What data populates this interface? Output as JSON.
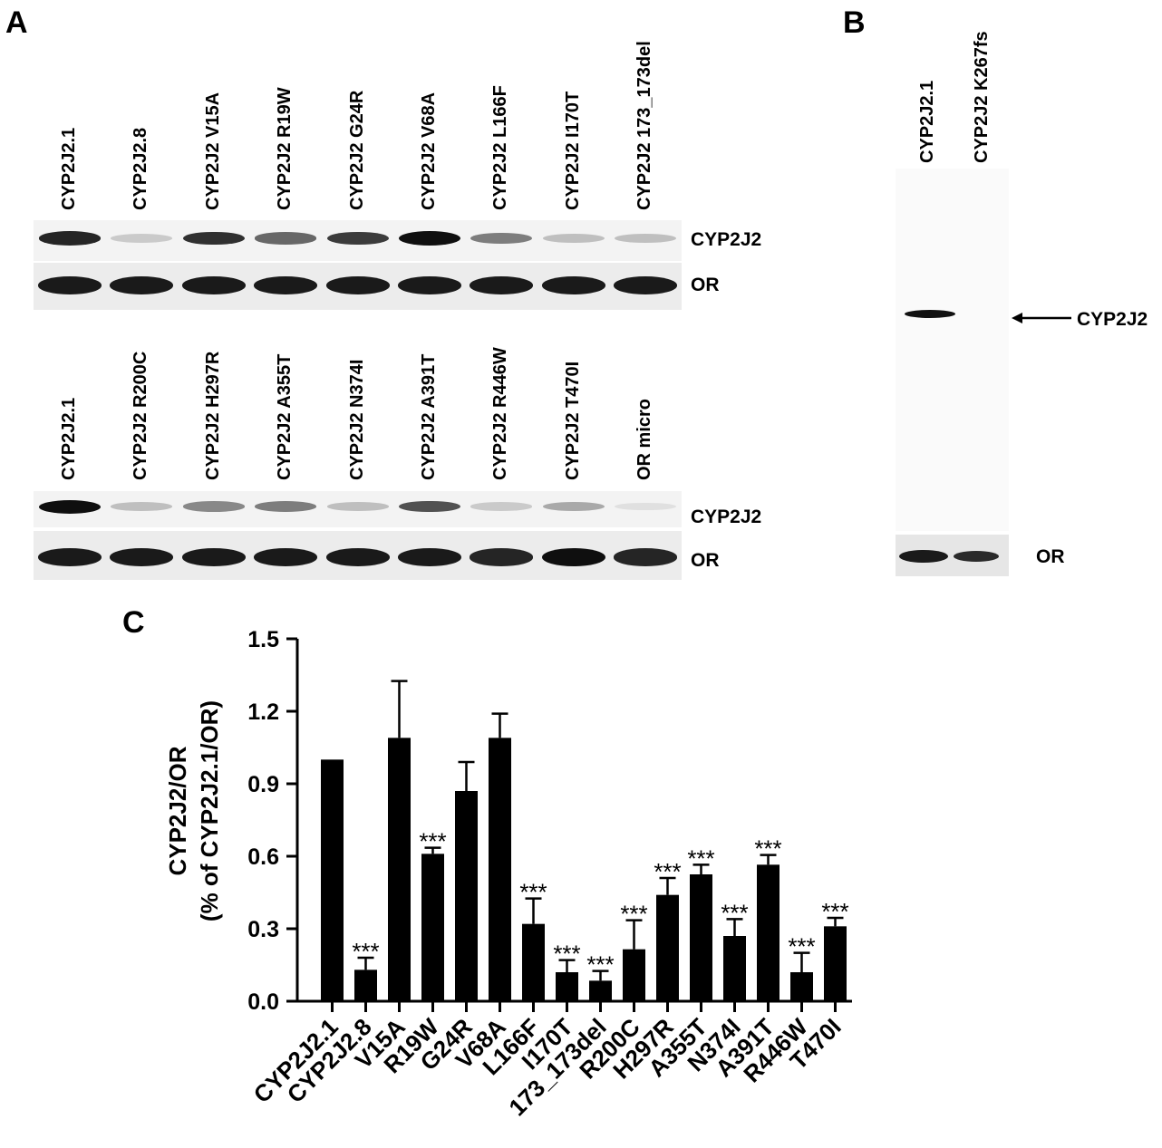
{
  "panels": {
    "a": "A",
    "b": "B",
    "c": "C"
  },
  "panel_a": {
    "top_lanes": [
      "CYP2J2.1",
      "CYP2J2.8",
      "CYP2J2 V15A",
      "CYP2J2 R19W",
      "CYP2J2 G24R",
      "CYP2J2 V68A",
      "CYP2J2 L166F",
      "CYP2J2 I170T",
      "CYP2J2  173_173del"
    ],
    "bottom_lanes": [
      "CYP2J2.1",
      "CYP2J2 R200C",
      "CYP2J2 H297R",
      "CYP2J2 A355T",
      "CYP2J2 N374I",
      "CYP2J2 A391T",
      "CYP2J2 R446W",
      "CYP2J2 T470I",
      "OR micro"
    ],
    "band_cyp": "CYP2J2",
    "band_or": "OR",
    "top_cyp_levels": [
      0.9,
      0.15,
      0.85,
      0.6,
      0.8,
      1.0,
      0.5,
      0.2,
      0.2
    ],
    "bottom_cyp_levels": [
      1.0,
      0.2,
      0.45,
      0.5,
      0.2,
      0.7,
      0.15,
      0.3,
      0.05
    ]
  },
  "panel_b": {
    "lanes": [
      "CYP2J2.1",
      "CYP2J2 K267fs"
    ],
    "arrow_label": "CYP2J2",
    "band_or": "OR"
  },
  "chart_data": {
    "type": "bar",
    "categories": [
      "CYP2J2.1",
      "CYP2J2.8",
      "V15A",
      "R19W",
      "G24R",
      "V68A",
      "L166F",
      "I170T",
      "173_173del",
      "R200C",
      "H297R",
      "A355T",
      "N374I",
      "A391T",
      "R446W",
      "T470I"
    ],
    "values": [
      1.0,
      0.13,
      1.09,
      0.61,
      0.87,
      1.09,
      0.32,
      0.12,
      0.085,
      0.215,
      0.44,
      0.525,
      0.27,
      0.565,
      0.12,
      0.31
    ],
    "errors": [
      0,
      0.05,
      0.235,
      0.025,
      0.12,
      0.1,
      0.105,
      0.05,
      0.04,
      0.12,
      0.07,
      0.04,
      0.07,
      0.04,
      0.08,
      0.035
    ],
    "significance": [
      "",
      "***",
      "",
      "***",
      "",
      "",
      "***",
      "***",
      "***",
      "***",
      "***",
      "***",
      "***",
      "***",
      "***",
      "***"
    ],
    "ylabel_line1": "CYP2J2/OR",
    "ylabel_line2": "(% of CYP2J2.1/OR)",
    "ylim": [
      0,
      1.5
    ],
    "yticks": [
      "0.0",
      "0.3",
      "0.6",
      "0.9",
      "1.2",
      "1.5"
    ],
    "ytick_values": [
      0,
      0.3,
      0.6,
      0.9,
      1.2,
      1.5
    ],
    "colors": {
      "bar": "#000000"
    }
  }
}
